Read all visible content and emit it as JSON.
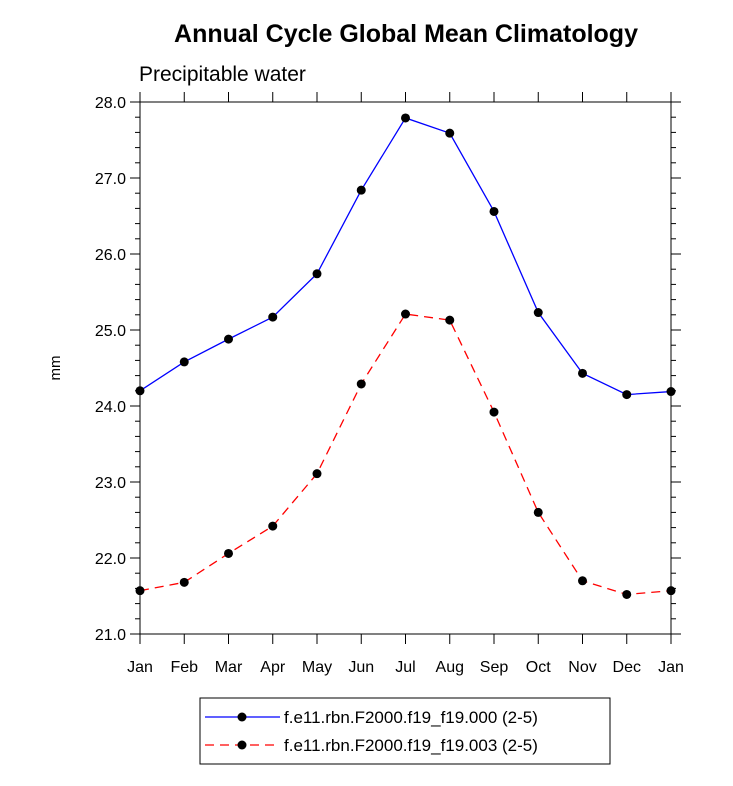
{
  "chart_data": {
    "type": "line",
    "title": "Annual Cycle Global Mean Climatology",
    "subtitle": "Precipitable water",
    "xlabel": "",
    "ylabel": "mm",
    "categories": [
      "Jan",
      "Feb",
      "Mar",
      "Apr",
      "May",
      "Jun",
      "Jul",
      "Aug",
      "Sep",
      "Oct",
      "Nov",
      "Dec",
      "Jan"
    ],
    "ylim": [
      21.0,
      28.0
    ],
    "yticks": [
      "21.0",
      "22.0",
      "23.0",
      "24.0",
      "25.0",
      "26.0",
      "27.0",
      "28.0"
    ],
    "ytick_values": [
      21.0,
      22.0,
      23.0,
      24.0,
      25.0,
      26.0,
      27.0,
      28.0
    ],
    "grid": false,
    "legend_position": "bottom-center",
    "series": [
      {
        "name": "f.e11.rbn.F2000.f19_f19.000 (2-5)",
        "color": "#0000ff",
        "dash": "solid",
        "values": [
          24.2,
          24.58,
          24.88,
          25.17,
          25.74,
          26.84,
          27.79,
          27.59,
          26.56,
          25.23,
          24.43,
          24.15,
          24.19
        ]
      },
      {
        "name": "f.e11.rbn.F2000.f19_f19.003 (2-5)",
        "color": "#ff0000",
        "dash": "dashed",
        "values": [
          21.57,
          21.68,
          22.06,
          22.42,
          23.11,
          24.29,
          25.21,
          25.13,
          23.92,
          22.6,
          21.7,
          21.52,
          21.57
        ]
      }
    ]
  }
}
